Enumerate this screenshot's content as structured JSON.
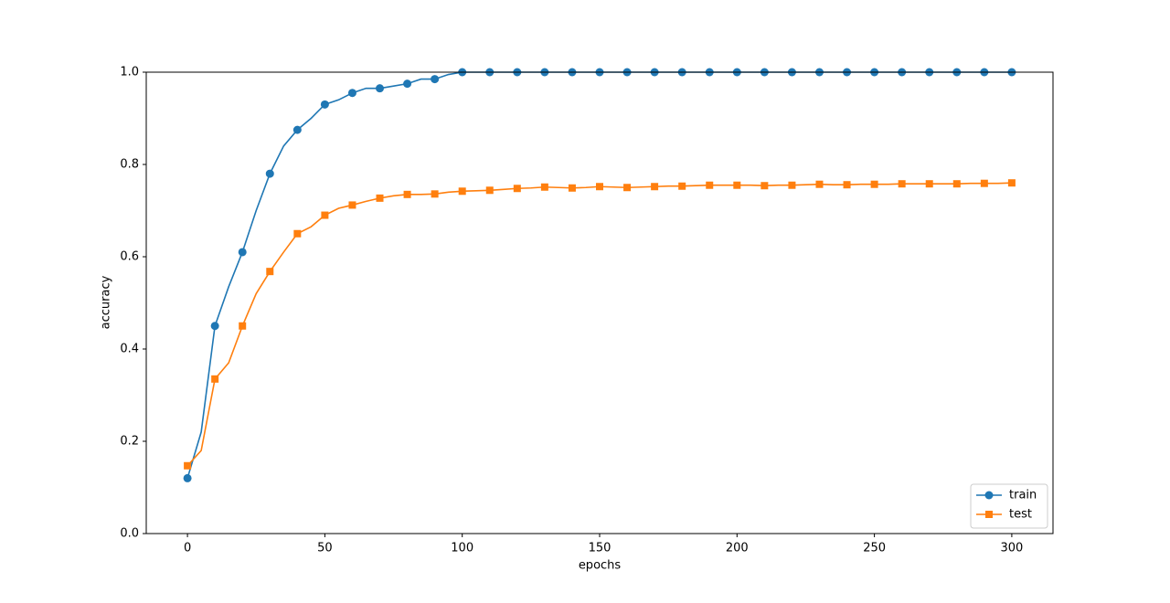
{
  "chart_data": {
    "type": "line",
    "xlabel": "epochs",
    "ylabel": "accuracy",
    "x": [
      0,
      5,
      10,
      15,
      20,
      25,
      30,
      35,
      40,
      45,
      50,
      55,
      60,
      65,
      70,
      75,
      80,
      85,
      90,
      95,
      100,
      105,
      110,
      115,
      120,
      125,
      130,
      135,
      140,
      145,
      150,
      155,
      160,
      165,
      170,
      175,
      180,
      185,
      190,
      195,
      200,
      205,
      210,
      215,
      220,
      225,
      230,
      235,
      240,
      245,
      250,
      255,
      260,
      265,
      270,
      275,
      280,
      285,
      290,
      295,
      300
    ],
    "series": [
      {
        "name": "train",
        "color": "#1f77b4",
        "marker": "circle",
        "values": [
          0.12,
          0.22,
          0.45,
          0.535,
          0.61,
          0.7,
          0.78,
          0.84,
          0.875,
          0.9,
          0.93,
          0.94,
          0.955,
          0.965,
          0.965,
          0.97,
          0.975,
          0.985,
          0.985,
          0.995,
          1.0,
          1.0,
          1.0,
          1.0,
          1.0,
          1.0,
          1.0,
          1.0,
          1.0,
          1.0,
          1.0,
          1.0,
          1.0,
          1.0,
          1.0,
          1.0,
          1.0,
          1.0,
          1.0,
          1.0,
          1.0,
          1.0,
          1.0,
          1.0,
          1.0,
          1.0,
          1.0,
          1.0,
          1.0,
          1.0,
          1.0,
          1.0,
          1.0,
          1.0,
          1.0,
          1.0,
          1.0,
          1.0,
          1.0,
          1.0,
          1.0
        ]
      },
      {
        "name": "test",
        "color": "#ff7f0e",
        "marker": "square",
        "values": [
          0.147,
          0.18,
          0.335,
          0.37,
          0.45,
          0.52,
          0.568,
          0.61,
          0.65,
          0.665,
          0.69,
          0.705,
          0.712,
          0.72,
          0.727,
          0.732,
          0.735,
          0.735,
          0.736,
          0.74,
          0.742,
          0.743,
          0.744,
          0.746,
          0.748,
          0.749,
          0.751,
          0.75,
          0.749,
          0.75,
          0.752,
          0.751,
          0.75,
          0.751,
          0.752,
          0.753,
          0.753,
          0.754,
          0.755,
          0.755,
          0.755,
          0.755,
          0.754,
          0.755,
          0.755,
          0.756,
          0.757,
          0.756,
          0.756,
          0.757,
          0.757,
          0.757,
          0.758,
          0.758,
          0.758,
          0.758,
          0.758,
          0.759,
          0.759,
          0.759,
          0.76
        ]
      }
    ],
    "markevery": 2,
    "xlim": [
      -15,
      315
    ],
    "xticks": [
      0,
      50,
      100,
      150,
      200,
      250,
      300
    ],
    "ylim": [
      0,
      1
    ],
    "yticks": [
      {
        "value": 0,
        "label": "0.0"
      },
      0.2,
      0.4,
      0.6,
      0.8,
      {
        "value": 1,
        "label": "1.0"
      }
    ],
    "grid": false,
    "legend": "lower right"
  }
}
